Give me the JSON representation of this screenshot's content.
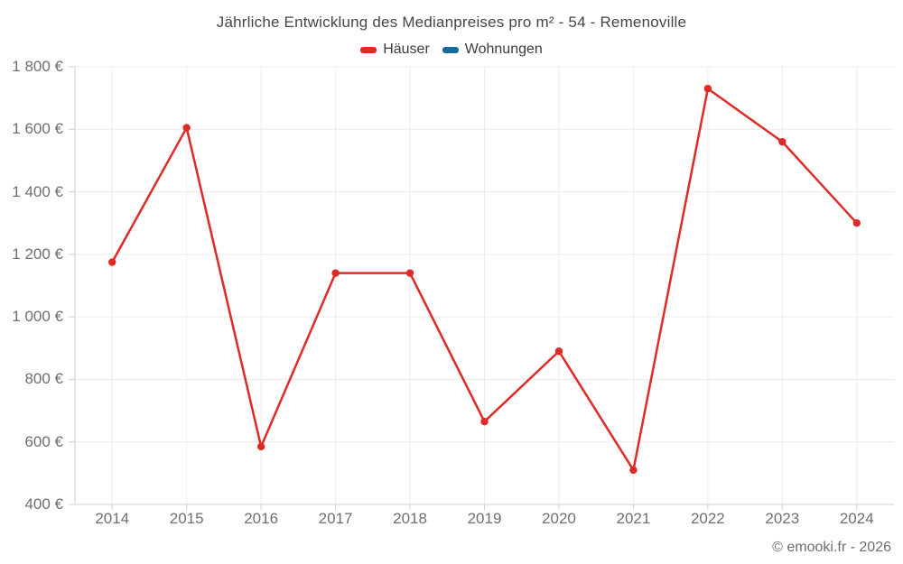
{
  "header": {
    "title": "Jährliche Entwicklung des Medianpreises pro m² - 54 - Remenoville"
  },
  "legend": {
    "items": [
      {
        "label": "Häuser",
        "color": "#df2b25"
      },
      {
        "label": "Wohnungen",
        "color": "#176a9c"
      }
    ]
  },
  "footer": {
    "credit": "© emooki.fr - 2026"
  },
  "chart_data": {
    "type": "line",
    "title": "Jährliche Entwicklung des Medianpreises pro m² - 54 - Remenoville",
    "xlabel": "",
    "ylabel": "",
    "currency": "€",
    "categories": [
      "2014",
      "2015",
      "2016",
      "2017",
      "2018",
      "2019",
      "2020",
      "2021",
      "2022",
      "2023",
      "2024"
    ],
    "series": [
      {
        "name": "Häuser",
        "color": "#df2b25",
        "values": [
          1175,
          1605,
          585,
          1140,
          1140,
          665,
          890,
          510,
          1730,
          1560,
          1300
        ]
      },
      {
        "name": "Wohnungen",
        "color": "#176a9c",
        "values": []
      }
    ],
    "ylim": [
      400,
      1800
    ],
    "y_ticks": [
      {
        "value": 400,
        "label": "400 €"
      },
      {
        "value": 600,
        "label": "600 €"
      },
      {
        "value": 800,
        "label": "800 €"
      },
      {
        "value": 1000,
        "label": "1 000 €"
      },
      {
        "value": 1200,
        "label": "1 200 €"
      },
      {
        "value": 1400,
        "label": "1 400 €"
      },
      {
        "value": 1600,
        "label": "1 600 €"
      },
      {
        "value": 1800,
        "label": "1 800 €"
      }
    ],
    "grid": true,
    "legend_position": "top"
  }
}
